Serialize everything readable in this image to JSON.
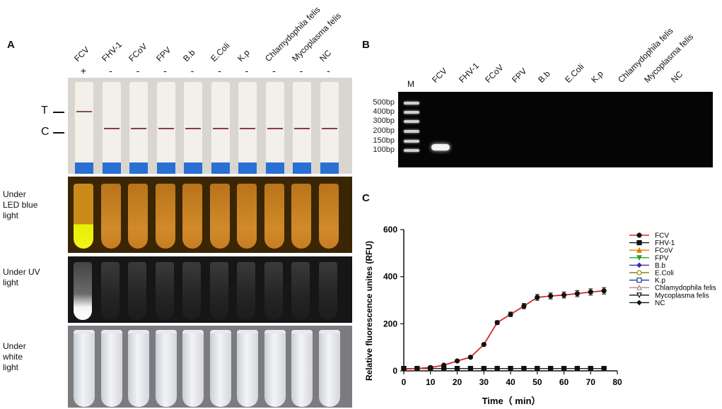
{
  "panels": {
    "a": "A",
    "b": "B",
    "c": "C"
  },
  "panel_a": {
    "lanes": [
      "FCV",
      "FHV-1",
      "FCoV",
      "FPV",
      "B.b",
      "E.Coli",
      "K.p",
      "Chlamydophila felis",
      "Mycoplasma felis",
      "NC"
    ],
    "signs": [
      "+",
      "-",
      "-",
      "-",
      "-",
      "-",
      "-",
      "-",
      "-",
      "-"
    ],
    "strip_marks": {
      "t": "T",
      "c": "C"
    },
    "rows": {
      "led": "Under\nLED blue\nlight",
      "uv": "Under UV\nlight",
      "white": "Under\nwhite\nlight"
    }
  },
  "panel_b": {
    "marker_lane": "M",
    "lanes": [
      "FCV",
      "FHV-1",
      "FCoV",
      "FPV",
      "B.b",
      "E.Coli",
      "K.p",
      "Chlamydophila felis",
      "Mycoplasma felis",
      "NC"
    ],
    "ladder": [
      "500bp",
      "400bp",
      "300bp",
      "200bp",
      "150bp",
      "100bp"
    ]
  },
  "chart_data": {
    "type": "line",
    "xlabel": "Time（ min）",
    "ylabel": "Relative fluorescence unites (RFU)",
    "xlim": [
      0,
      80
    ],
    "ylim": [
      0,
      600
    ],
    "xticks": [
      0,
      10,
      20,
      30,
      40,
      50,
      60,
      70,
      80
    ],
    "yticks": [
      0,
      200,
      400,
      600
    ],
    "x": [
      0,
      5,
      10,
      15,
      20,
      25,
      30,
      35,
      40,
      45,
      50,
      55,
      60,
      65,
      70,
      75
    ],
    "legend_position": "right",
    "series": [
      {
        "name": "FCV",
        "color": "#d62728",
        "marker": "circle",
        "values": [
          8,
          10,
          14,
          24,
          42,
          58,
          112,
          205,
          240,
          275,
          312,
          318,
          322,
          328,
          335,
          340
        ]
      },
      {
        "name": "FHV-1",
        "color": "#111111",
        "marker": "square",
        "values": [
          10,
          10,
          10,
          10,
          10,
          10,
          10,
          10,
          10,
          10,
          10,
          10,
          10,
          10,
          10,
          10
        ]
      },
      {
        "name": "FCoV",
        "color": "#e07b00",
        "marker": "triangle-up",
        "values": [
          10,
          10,
          10,
          10,
          10,
          10,
          10,
          10,
          10,
          10,
          10,
          10,
          10,
          10,
          10,
          10
        ]
      },
      {
        "name": "FPV",
        "color": "#2ca02c",
        "marker": "triangle-down",
        "values": [
          10,
          10,
          10,
          10,
          10,
          10,
          10,
          10,
          10,
          10,
          10,
          10,
          10,
          10,
          10,
          10
        ]
      },
      {
        "name": "B.b",
        "color": "#3b2bb8",
        "marker": "diamond",
        "values": [
          10,
          10,
          10,
          10,
          10,
          10,
          10,
          10,
          10,
          10,
          10,
          10,
          10,
          10,
          10,
          10
        ]
      },
      {
        "name": "E.Coli",
        "color": "#8a8a00",
        "marker": "circle-open",
        "values": [
          10,
          10,
          10,
          10,
          10,
          10,
          10,
          10,
          10,
          10,
          10,
          10,
          10,
          10,
          10,
          10
        ]
      },
      {
        "name": "K.p",
        "color": "#1a3a9a",
        "marker": "square-open",
        "values": [
          10,
          10,
          10,
          10,
          10,
          10,
          10,
          10,
          10,
          10,
          10,
          10,
          10,
          10,
          10,
          10
        ]
      },
      {
        "name": "Chlamydophila felis",
        "color": "#c48080",
        "marker": "triangle-up-open",
        "values": [
          10,
          10,
          10,
          10,
          10,
          10,
          10,
          10,
          10,
          10,
          10,
          10,
          10,
          10,
          10,
          10
        ]
      },
      {
        "name": "Mycoplasma felis",
        "color": "#111111",
        "marker": "triangle-down-open",
        "values": [
          10,
          10,
          10,
          10,
          10,
          10,
          10,
          10,
          10,
          10,
          10,
          10,
          10,
          10,
          10,
          10
        ]
      },
      {
        "name": "NC",
        "color": "#111111",
        "marker": "diamond",
        "values": [
          10,
          10,
          10,
          10,
          10,
          10,
          10,
          10,
          10,
          10,
          10,
          10,
          10,
          10,
          10,
          10
        ]
      }
    ]
  }
}
